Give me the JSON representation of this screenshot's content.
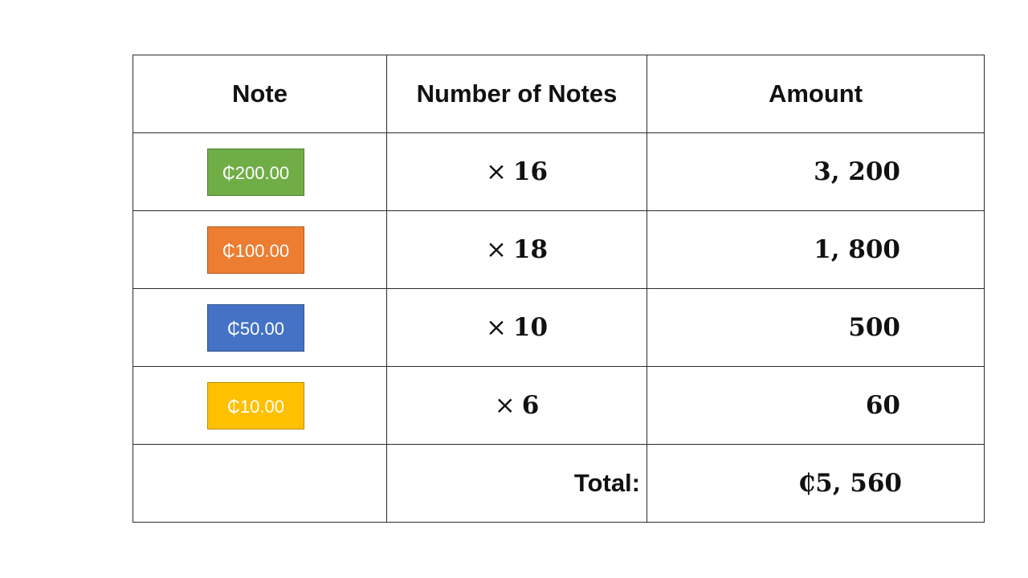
{
  "table": {
    "headers": [
      "Note",
      "Number of Notes",
      "Amount"
    ],
    "rows": [
      {
        "note": "₵200.00",
        "note_color": "#70ad47",
        "note_border": "#507e32",
        "multiplier": "×",
        "count": "16",
        "amount": "3, 200"
      },
      {
        "note": "₵100.00",
        "note_color": "#ed7d31",
        "note_border": "#ae5a21",
        "multiplier": "×",
        "count": "18",
        "amount": "1, 800"
      },
      {
        "note": "₵50.00",
        "note_color": "#4472c4",
        "note_border": "#2f528f",
        "multiplier": "×",
        "count": "10",
        "amount": "500"
      },
      {
        "note": "₵10.00",
        "note_color": "#ffc000",
        "note_border": "#bc8c00",
        "multiplier": "×",
        "count": "6",
        "amount": "60"
      }
    ],
    "total_label": "Total:",
    "total_value": "₵5, 560"
  }
}
